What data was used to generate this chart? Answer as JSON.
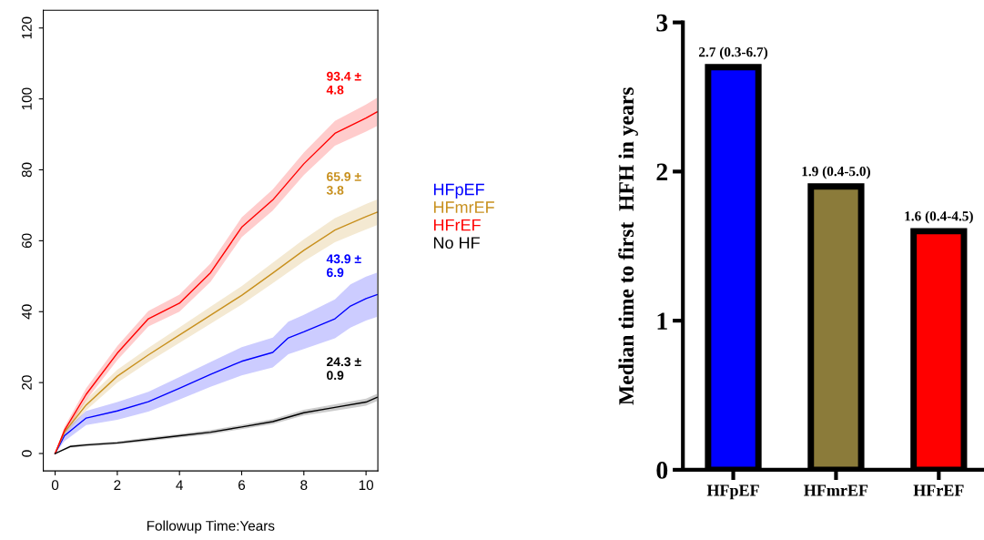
{
  "chart_data": [
    {
      "type": "line",
      "xlabel": "Followup Time:Years",
      "xlim": [
        -0.38,
        10.38
      ],
      "ylim": [
        -4.9,
        125
      ],
      "xticks": [
        0,
        2,
        4,
        6,
        8,
        10
      ],
      "yticks": [
        0,
        20,
        40,
        60,
        80,
        100,
        120
      ],
      "grid": false,
      "legend": "right",
      "marker": "none",
      "line_style": "solid",
      "series": [
        {
          "name": "HFpEF",
          "color": "#0000ff",
          "x": [
            0,
            0.3,
            1,
            2,
            3,
            4,
            5,
            6,
            7,
            7.5,
            8,
            9,
            9.5,
            10,
            10.35
          ],
          "values": [
            0,
            5,
            10,
            12,
            14.6,
            18.4,
            22.3,
            26,
            28.5,
            32.6,
            34.3,
            38,
            41.6,
            43.7,
            44.8
          ],
          "lower": [
            0,
            3.5,
            8,
            9.5,
            11.8,
            15.2,
            18.8,
            22,
            24.3,
            28,
            29.5,
            32.5,
            35.5,
            37.5,
            38.5
          ],
          "upper": [
            0,
            6.5,
            12,
            14.5,
            17.4,
            21.6,
            25.8,
            30,
            32.7,
            37.2,
            39.1,
            43.5,
            47.7,
            49.9,
            51
          ]
        },
        {
          "name": "HFmrEF",
          "color": "#c8901e",
          "x": [
            0,
            0.3,
            1,
            2,
            3,
            4,
            5,
            6,
            7,
            8,
            9,
            10,
            10.35
          ],
          "values": [
            0,
            6,
            13.7,
            21.8,
            27.8,
            33.4,
            39,
            44.6,
            50.9,
            57.3,
            63,
            66.8,
            68
          ],
          "lower": [
            0,
            5,
            12.2,
            20,
            25.8,
            31.2,
            36.6,
            42,
            48,
            54.2,
            59.6,
            63.2,
            64.4
          ],
          "upper": [
            0,
            7,
            15.2,
            23.6,
            29.8,
            35.6,
            41.4,
            47.2,
            53.8,
            60.4,
            66.4,
            70.4,
            71.6
          ]
        },
        {
          "name": "HFrEF",
          "color": "#ff0000",
          "x": [
            0,
            0.3,
            1,
            2,
            3,
            4,
            5,
            6,
            7,
            8,
            9,
            10,
            10.35
          ],
          "values": [
            0,
            6.5,
            16.7,
            28.3,
            38,
            42.4,
            51,
            63.8,
            71.5,
            81.7,
            90.3,
            94.6,
            96.3
          ],
          "lower": [
            0,
            5.5,
            15,
            26.3,
            35.8,
            40,
            48.4,
            61,
            68.5,
            78.5,
            86.8,
            90.8,
            92.3
          ],
          "upper": [
            0,
            7.5,
            18.4,
            30.3,
            40.2,
            44.8,
            53.6,
            66.6,
            74.5,
            84.9,
            93.8,
            98.4,
            100.3
          ]
        },
        {
          "name": "No HF",
          "color": "#000000",
          "x": [
            0,
            0.5,
            1,
            2,
            3,
            4,
            5,
            6,
            7,
            8,
            9,
            10,
            10.35
          ],
          "values": [
            0,
            2,
            2.4,
            3,
            4,
            5,
            6,
            7.5,
            9,
            11.5,
            13,
            14.5,
            15.8
          ],
          "lower": [
            0,
            1.6,
            2,
            2.6,
            3.5,
            4.5,
            5.4,
            6.9,
            8.3,
            10.7,
            12.1,
            13.5,
            14.8
          ],
          "upper": [
            0,
            2.4,
            2.8,
            3.4,
            4.5,
            5.5,
            6.6,
            8.1,
            9.7,
            12.3,
            13.9,
            15.5,
            16.8
          ]
        }
      ],
      "annotations": [
        "43.9 ±\n6.9",
        "65.9 ±\n3.8",
        "93.4 ±\n4.8",
        "24.3 ±\n0.9"
      ]
    },
    {
      "type": "bar",
      "ylabel": "Median time to first  HFH in years",
      "categories": [
        "HFpEF",
        "HFmrEF",
        "HFrEF"
      ],
      "values": [
        2.7,
        1.9,
        1.6
      ],
      "colors": [
        "#0000ff",
        "#8b7b3a",
        "#ff0000"
      ],
      "value_labels": [
        "2.7 (0.3-6.7)",
        "1.9 (0.4-5.0)",
        "1.6 (0.4-4.5)"
      ],
      "ylim": [
        0,
        3
      ],
      "yticks": [
        0,
        1,
        2,
        3
      ],
      "grid": false,
      "legend": false
    }
  ]
}
